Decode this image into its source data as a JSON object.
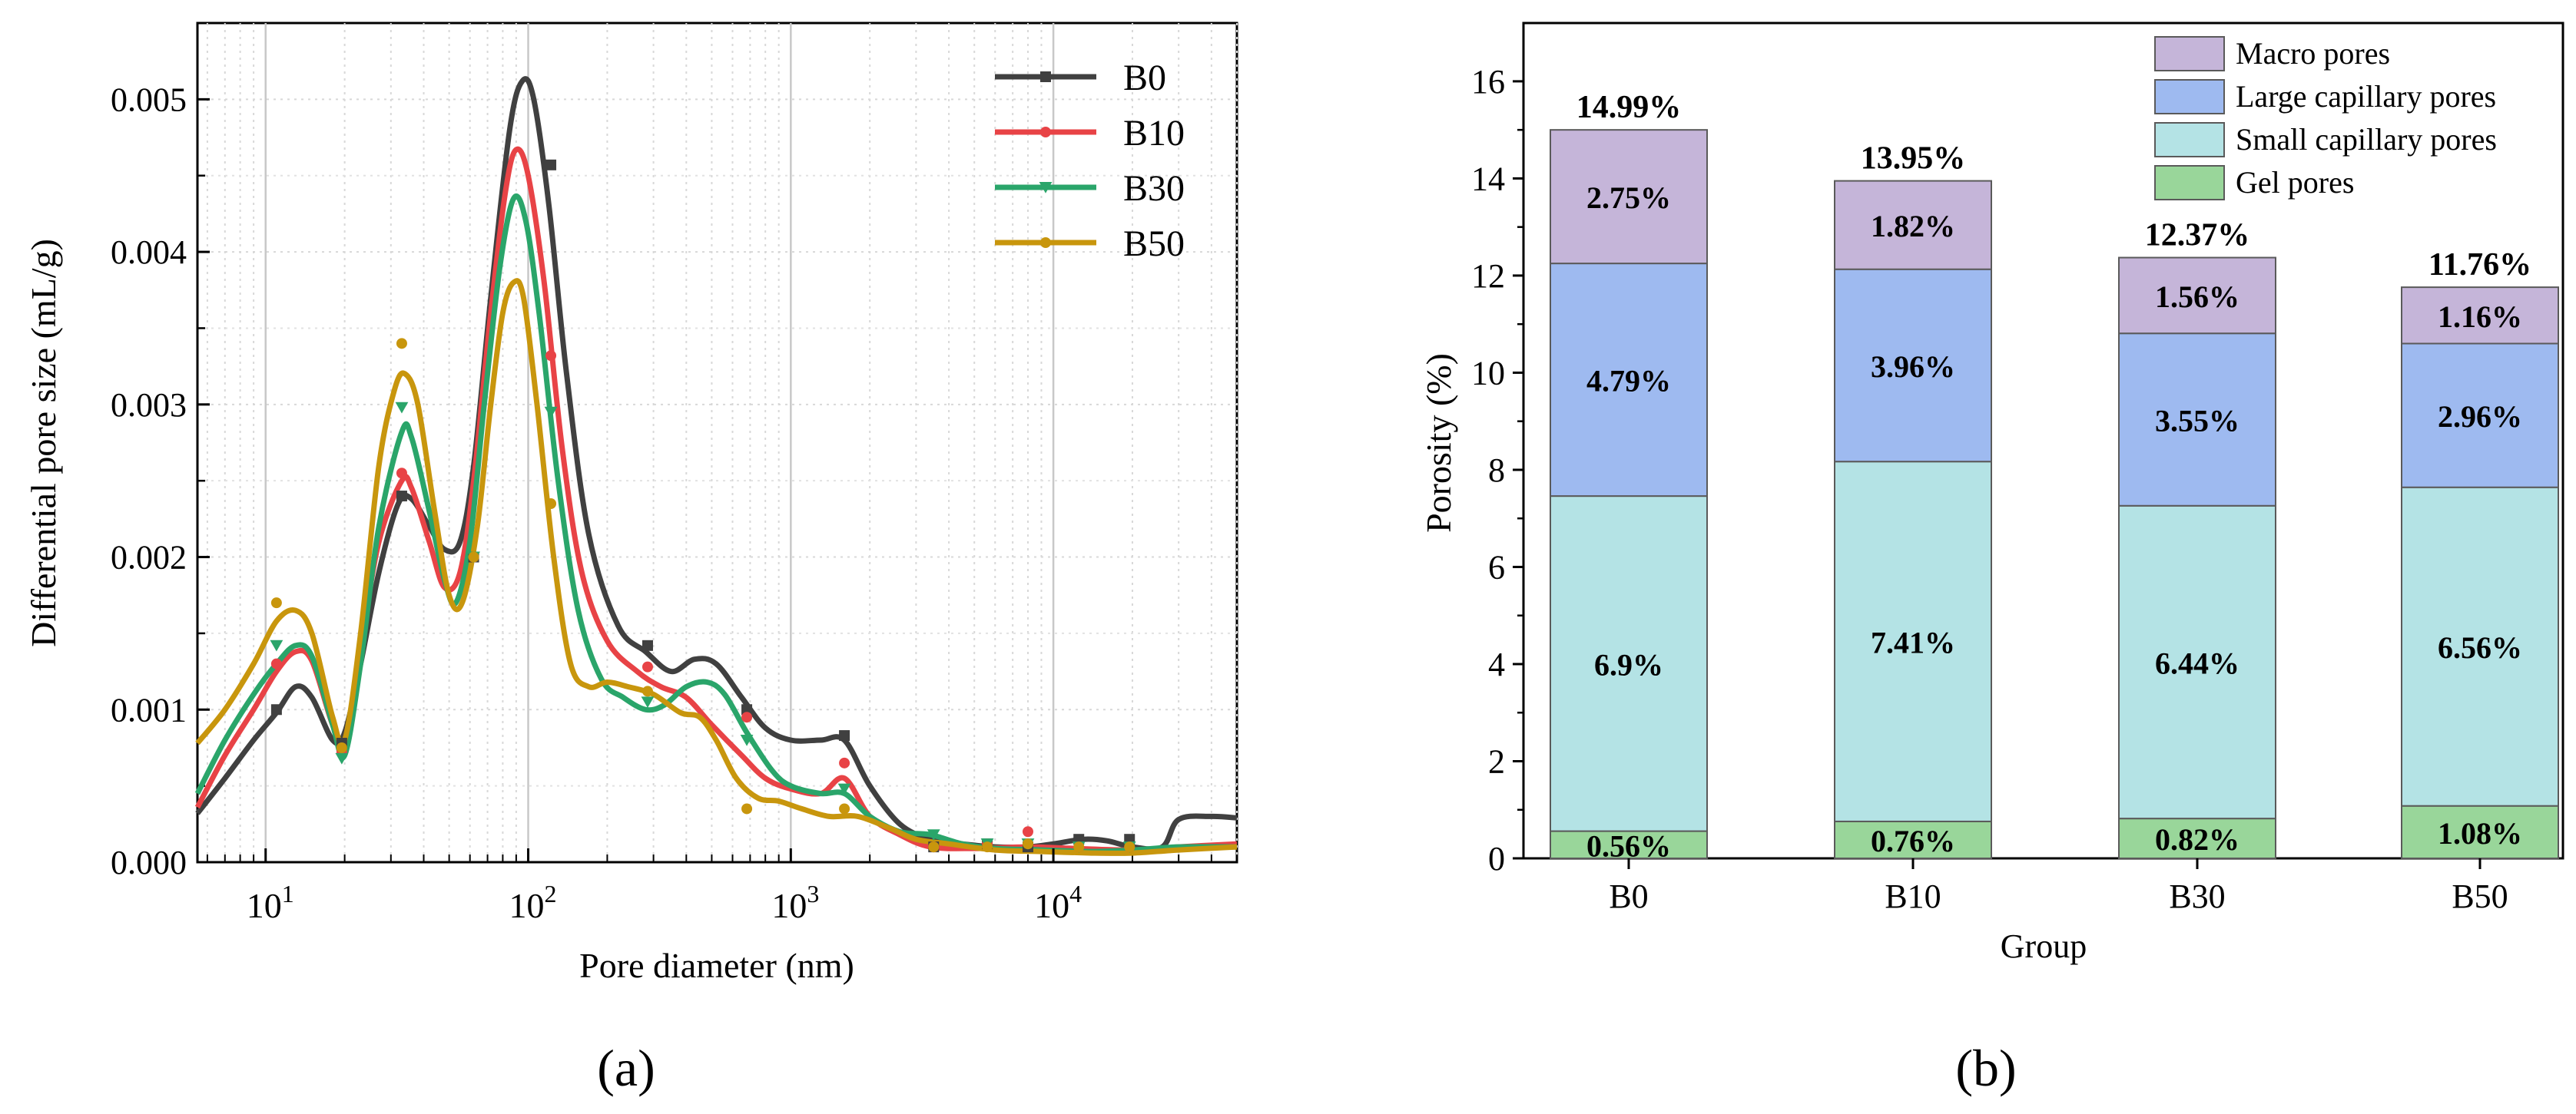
{
  "chart_data": [
    {
      "type": "line",
      "panel_label": "(a)",
      "xscale": "log",
      "xlabel": "Pore diameter (nm)",
      "ylabel": "Differential pore size (mL/g)",
      "xlim": [
        5.5,
        50000
      ],
      "ylim": [
        0,
        0.0055
      ],
      "yticks": [
        0,
        0.001,
        0.002,
        0.003,
        0.004,
        0.005
      ],
      "ytick_labels": [
        "0.000",
        "0.001",
        "0.002",
        "0.003",
        "0.004",
        "0.005"
      ],
      "xticks": [
        10,
        100,
        1000,
        10000
      ],
      "xtick_bases": [
        "10",
        "10",
        "10",
        "10"
      ],
      "xtick_exps": [
        "1",
        "2",
        "3",
        "4"
      ],
      "grid": true,
      "legend_position": "top-right",
      "series": [
        {
          "name": "B0",
          "color": "#404040",
          "marker": "square",
          "curve": [
            [
              5.5,
              0.00032
            ],
            [
              7,
              0.00055
            ],
            [
              9,
              0.0008
            ],
            [
              11,
              0.00098
            ],
            [
              13,
              0.00115
            ],
            [
              15,
              0.00108
            ],
            [
              18,
              0.0008
            ],
            [
              20,
              0.00085
            ],
            [
              23,
              0.0013
            ],
            [
              27,
              0.0019
            ],
            [
              32,
              0.00235
            ],
            [
              36,
              0.00238
            ],
            [
              42,
              0.0022
            ],
            [
              48,
              0.00205
            ],
            [
              55,
              0.0021
            ],
            [
              62,
              0.0026
            ],
            [
              72,
              0.0037
            ],
            [
              85,
              0.0048
            ],
            [
              95,
              0.00512
            ],
            [
              105,
              0.005
            ],
            [
              120,
              0.0043
            ],
            [
              140,
              0.0032
            ],
            [
              170,
              0.00215
            ],
            [
              220,
              0.00155
            ],
            [
              280,
              0.00138
            ],
            [
              350,
              0.00125
            ],
            [
              430,
              0.00133
            ],
            [
              520,
              0.0013
            ],
            [
              650,
              0.00108
            ],
            [
              800,
              0.00088
            ],
            [
              1000,
              0.0008
            ],
            [
              1300,
              0.0008
            ],
            [
              1600,
              0.0008
            ],
            [
              2000,
              0.0005
            ],
            [
              2600,
              0.00025
            ],
            [
              3400,
              0.00015
            ],
            [
              4500,
              0.00012
            ],
            [
              6000,
              0.0001
            ],
            [
              8000,
              0.0001
            ],
            [
              10000,
              0.00012
            ],
            [
              13000,
              0.00015
            ],
            [
              16000,
              0.00014
            ],
            [
              20000,
              0.0001
            ],
            [
              26000,
              0.0001
            ],
            [
              30000,
              0.00028
            ],
            [
              40000,
              0.0003
            ],
            [
              50000,
              0.00029
            ]
          ],
          "markers": [
            [
              11,
              0.001
            ],
            [
              19.5,
              0.00078
            ],
            [
              33,
              0.0024
            ],
            [
              62,
              0.002
            ],
            [
              122,
              0.00457
            ],
            [
              285,
              0.00142
            ],
            [
              680,
              0.001
            ],
            [
              1600,
              0.00083
            ],
            [
              3500,
              0.0001
            ],
            [
              5600,
              0.00012
            ],
            [
              8000,
              0.0001
            ],
            [
              12500,
              0.00015
            ],
            [
              19500,
              0.00015
            ]
          ]
        },
        {
          "name": "B10",
          "color": "#e84346",
          "marker": "circle",
          "curve": [
            [
              5.5,
              0.00036
            ],
            [
              7,
              0.0007
            ],
            [
              9,
              0.001
            ],
            [
              11,
              0.00125
            ],
            [
              13,
              0.00138
            ],
            [
              15,
              0.00132
            ],
            [
              18,
              0.0009
            ],
            [
              20,
              0.0008
            ],
            [
              23,
              0.0014
            ],
            [
              27,
              0.0021
            ],
            [
              33,
              0.0025
            ],
            [
              36,
              0.00245
            ],
            [
              42,
              0.0021
            ],
            [
              48,
              0.0018
            ],
            [
              55,
              0.0019
            ],
            [
              62,
              0.0025
            ],
            [
              72,
              0.0036
            ],
            [
              82,
              0.0044
            ],
            [
              90,
              0.00467
            ],
            [
              100,
              0.0045
            ],
            [
              115,
              0.0038
            ],
            [
              135,
              0.0027
            ],
            [
              160,
              0.0019
            ],
            [
              200,
              0.00145
            ],
            [
              260,
              0.00125
            ],
            [
              320,
              0.00115
            ],
            [
              400,
              0.00108
            ],
            [
              500,
              0.0009
            ],
            [
              650,
              0.0007
            ],
            [
              800,
              0.00055
            ],
            [
              1000,
              0.00048
            ],
            [
              1300,
              0.00045
            ],
            [
              1600,
              0.00055
            ],
            [
              2000,
              0.0003
            ],
            [
              2600,
              0.00018
            ],
            [
              3400,
              0.0001
            ],
            [
              5000,
              9e-05
            ],
            [
              8000,
              0.0001
            ],
            [
              12000,
              9e-05
            ],
            [
              20000,
              8e-05
            ],
            [
              30000,
              0.0001
            ],
            [
              50000,
              0.00012
            ]
          ],
          "markers": [
            [
              11,
              0.0013
            ],
            [
              19.5,
              0.00072
            ],
            [
              33,
              0.00255
            ],
            [
              62,
              0.002
            ],
            [
              122,
              0.00332
            ],
            [
              285,
              0.00128
            ],
            [
              680,
              0.00095
            ],
            [
              1600,
              0.00065
            ],
            [
              3500,
              0.0001
            ],
            [
              5600,
              0.00012
            ],
            [
              8000,
              0.0002
            ],
            [
              12500,
              0.0001
            ],
            [
              19500,
              0.0001
            ]
          ]
        },
        {
          "name": "B30",
          "color": "#2aa56a",
          "marker": "triangle-down",
          "curve": [
            [
              5.5,
              0.00045
            ],
            [
              7,
              0.0008
            ],
            [
              9,
              0.0011
            ],
            [
              11,
              0.0013
            ],
            [
              13,
              0.00142
            ],
            [
              15,
              0.00135
            ],
            [
              18,
              0.0009
            ],
            [
              20,
              0.0007
            ],
            [
              23,
              0.0013
            ],
            [
              27,
              0.0022
            ],
            [
              33,
              0.00282
            ],
            [
              36,
              0.00278
            ],
            [
              42,
              0.0023
            ],
            [
              48,
              0.00185
            ],
            [
              53,
              0.0017
            ],
            [
              60,
              0.0021
            ],
            [
              68,
              0.003
            ],
            [
              78,
              0.0039
            ],
            [
              88,
              0.00435
            ],
            [
              98,
              0.0042
            ],
            [
              110,
              0.0036
            ],
            [
              130,
              0.0025
            ],
            [
              155,
              0.00165
            ],
            [
              190,
              0.0012
            ],
            [
              230,
              0.00108
            ],
            [
              280,
              0.001
            ],
            [
              330,
              0.00103
            ],
            [
              400,
              0.00115
            ],
            [
              480,
              0.00118
            ],
            [
              560,
              0.0011
            ],
            [
              680,
              0.00085
            ],
            [
              850,
              0.0006
            ],
            [
              1000,
              0.0005
            ],
            [
              1300,
              0.00045
            ],
            [
              1600,
              0.00045
            ],
            [
              2000,
              0.0003
            ],
            [
              2600,
              0.0002
            ],
            [
              3400,
              0.00018
            ],
            [
              4500,
              0.00012
            ],
            [
              6000,
              9e-05
            ],
            [
              9000,
              8e-05
            ],
            [
              14000,
              7e-05
            ],
            [
              20000,
              8e-05
            ],
            [
              30000,
              0.0001
            ],
            [
              50000,
              0.0001
            ]
          ],
          "markers": [
            [
              11,
              0.00142
            ],
            [
              19.5,
              0.00068
            ],
            [
              33,
              0.00298
            ],
            [
              62,
              0.002
            ],
            [
              122,
              0.00295
            ],
            [
              285,
              0.00105
            ],
            [
              680,
              0.0008
            ],
            [
              1600,
              0.00048
            ],
            [
              3500,
              0.00018
            ],
            [
              5600,
              0.00012
            ],
            [
              8000,
              0.00012
            ],
            [
              12500,
              0.0001
            ],
            [
              19500,
              0.0001
            ]
          ]
        },
        {
          "name": "B50",
          "color": "#c8960d",
          "marker": "circle",
          "curve": [
            [
              5.5,
              0.00078
            ],
            [
              7,
              0.001
            ],
            [
              9,
              0.0013
            ],
            [
              11,
              0.00158
            ],
            [
              13,
              0.00165
            ],
            [
              15,
              0.0015
            ],
            [
              18,
              0.00095
            ],
            [
              20,
              0.0008
            ],
            [
              23,
              0.0015
            ],
            [
              27,
              0.0026
            ],
            [
              31,
              0.0031
            ],
            [
              34,
              0.0032
            ],
            [
              38,
              0.003
            ],
            [
              44,
              0.0023
            ],
            [
              50,
              0.00175
            ],
            [
              56,
              0.0017
            ],
            [
              64,
              0.0022
            ],
            [
              72,
              0.003
            ],
            [
              80,
              0.0036
            ],
            [
              88,
              0.0038
            ],
            [
              96,
              0.0037
            ],
            [
              108,
              0.003
            ],
            [
              125,
              0.002
            ],
            [
              145,
              0.0013
            ],
            [
              170,
              0.00115
            ],
            [
              200,
              0.00118
            ],
            [
              240,
              0.00115
            ],
            [
              300,
              0.0011
            ],
            [
              380,
              0.00098
            ],
            [
              450,
              0.00095
            ],
            [
              520,
              0.0008
            ],
            [
              620,
              0.00055
            ],
            [
              750,
              0.00042
            ],
            [
              900,
              0.0004
            ],
            [
              1100,
              0.00035
            ],
            [
              1400,
              0.0003
            ],
            [
              1800,
              0.0003
            ],
            [
              2400,
              0.00022
            ],
            [
              3000,
              0.00015
            ],
            [
              4000,
              0.00012
            ],
            [
              6000,
              8e-05
            ],
            [
              9000,
              7e-05
            ],
            [
              14000,
              6e-05
            ],
            [
              20000,
              6e-05
            ],
            [
              30000,
              8e-05
            ],
            [
              50000,
              0.0001
            ]
          ],
          "markers": [
            [
              11,
              0.0017
            ],
            [
              19.5,
              0.00075
            ],
            [
              33,
              0.0034
            ],
            [
              62,
              0.002
            ],
            [
              122,
              0.00235
            ],
            [
              285,
              0.00112
            ],
            [
              680,
              0.00035
            ],
            [
              1600,
              0.00035
            ],
            [
              3500,
              0.0001
            ],
            [
              5600,
              0.0001
            ],
            [
              8000,
              0.00012
            ],
            [
              12500,
              0.0001
            ],
            [
              19500,
              0.0001
            ]
          ]
        }
      ]
    },
    {
      "type": "bar",
      "stacked": true,
      "panel_label": "(b)",
      "xlabel": "Group",
      "ylabel": "Porosity (%)",
      "ylim": [
        0,
        17.2
      ],
      "yticks": [
        0,
        2,
        4,
        6,
        8,
        10,
        12,
        14,
        16
      ],
      "ytick_labels": [
        "0",
        "2",
        "4",
        "6",
        "8",
        "10",
        "12",
        "14",
        "16"
      ],
      "categories": [
        "B0",
        "B10",
        "B30",
        "B50"
      ],
      "totals": [
        14.99,
        13.95,
        12.37,
        11.76
      ],
      "total_labels": [
        "14.99%",
        "13.95%",
        "12.37%",
        "11.76%"
      ],
      "legend_position": "top-right",
      "series": [
        {
          "name": "Gel pores",
          "color": "#99d69a",
          "values": [
            0.56,
            0.76,
            0.82,
            1.08
          ],
          "labels": [
            "0.56%",
            "0.76%",
            "0.82%",
            "1.08%"
          ]
        },
        {
          "name": "Small capillary pores",
          "color": "#b4e3e5",
          "values": [
            6.9,
            7.41,
            6.44,
            6.56
          ],
          "labels": [
            "6.9%",
            "7.41%",
            "6.44%",
            "6.56%"
          ]
        },
        {
          "name": "Large capillary pores",
          "color": "#9ebaf0",
          "values": [
            4.79,
            3.96,
            3.55,
            2.96
          ],
          "labels": [
            "4.79%",
            "3.96%",
            "3.55%",
            "2.96%"
          ]
        },
        {
          "name": "Macro pores",
          "color": "#c5b5d9",
          "values": [
            2.75,
            1.82,
            1.56,
            1.16
          ],
          "labels": [
            "2.75%",
            "1.82%",
            "1.56%",
            "1.16%"
          ]
        }
      ],
      "legend_order": [
        "Macro pores",
        "Large capillary pores",
        "Small capillary pores",
        "Gel pores"
      ]
    }
  ]
}
